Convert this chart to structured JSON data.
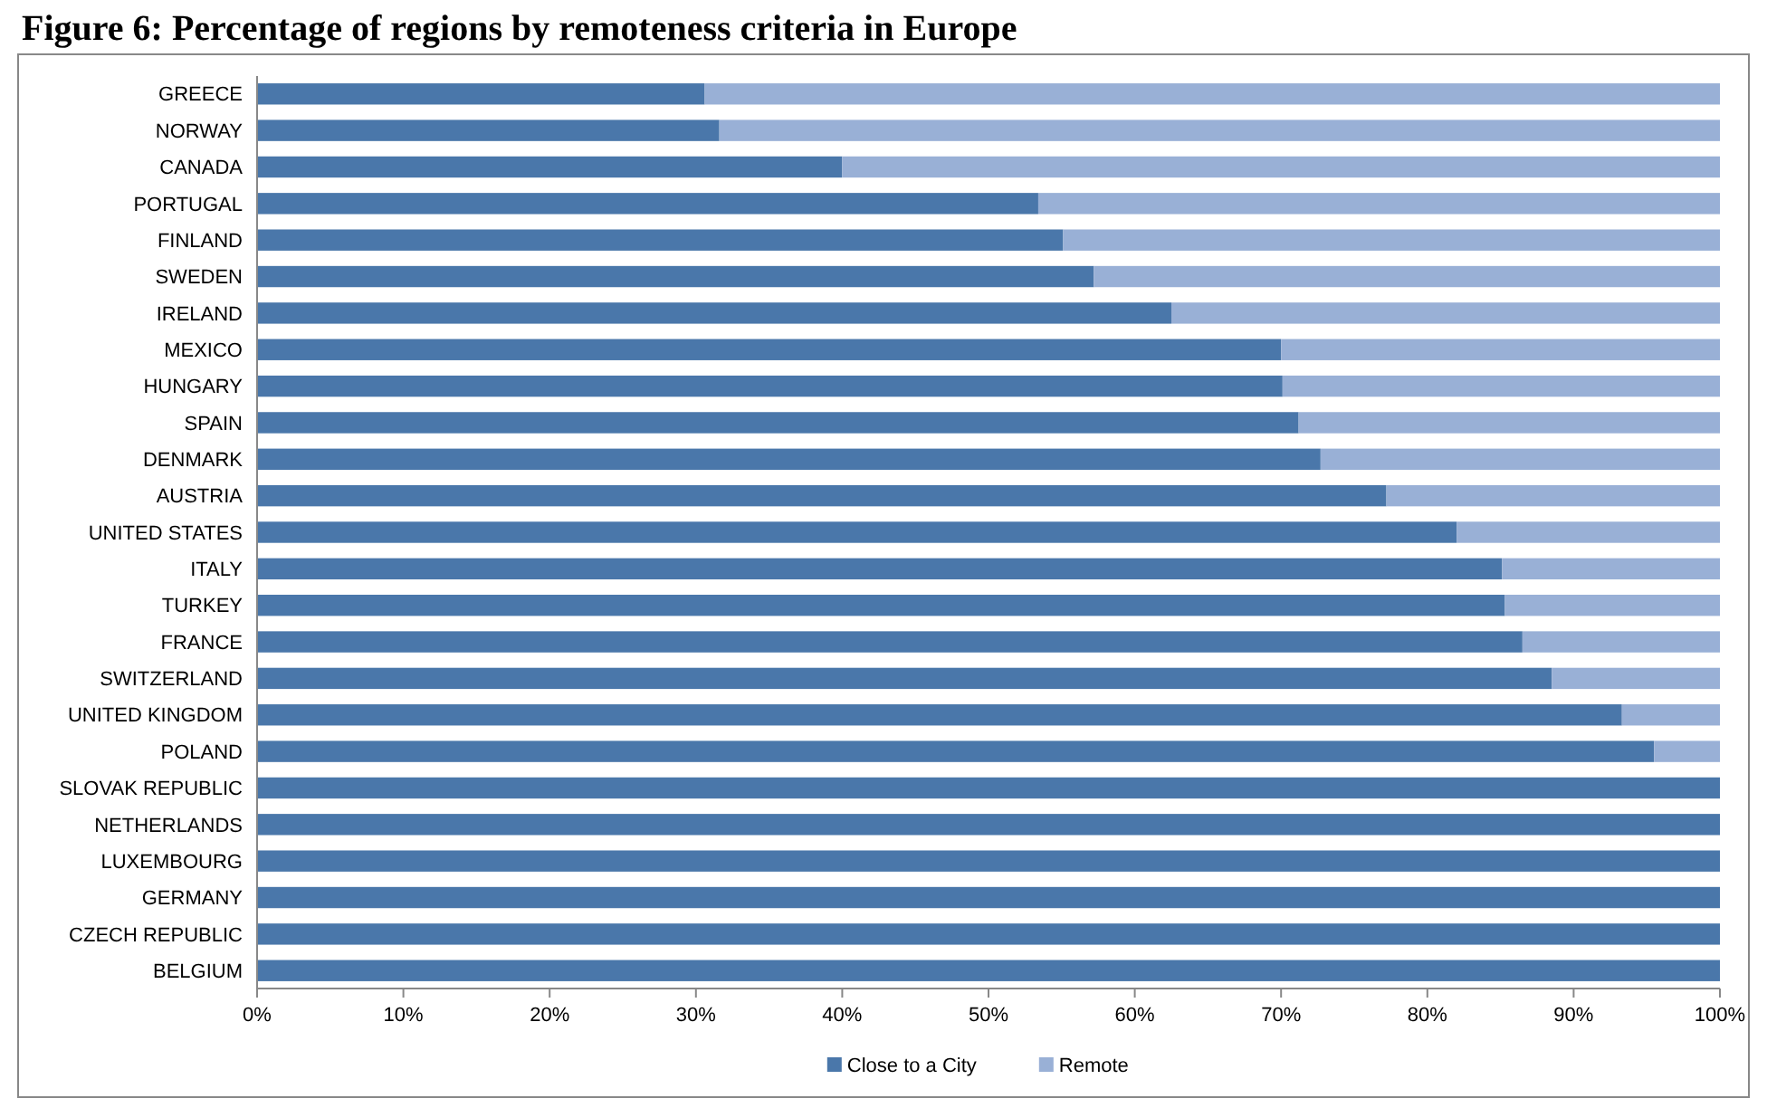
{
  "chart_data": {
    "type": "bar",
    "orientation": "horizontal",
    "stacked": true,
    "title": "Figure 6: Percentage of regions by remoteness criteria in Europe",
    "categories": [
      "GREECE",
      "NORWAY",
      "CANADA",
      "PORTUGAL",
      "FINLAND",
      "SWEDEN",
      "IRELAND",
      "MEXICO",
      "HUNGARY",
      "SPAIN",
      "DENMARK",
      "AUSTRIA",
      "UNITED STATES",
      "ITALY",
      "TURKEY",
      "FRANCE",
      "SWITZERLAND",
      "UNITED KINGDOM",
      "POLAND",
      "SLOVAK REPUBLIC",
      "NETHERLANDS",
      "LUXEMBOURG",
      "GERMANY",
      "CZECH REPUBLIC",
      "BELGIUM"
    ],
    "series": [
      {
        "name": "Close to a City",
        "color": "#4a77aa",
        "values": [
          30.6,
          31.6,
          40,
          53.4,
          55.1,
          57.2,
          62.5,
          70,
          70.1,
          71.2,
          72.7,
          77.2,
          82,
          85.1,
          85.3,
          86.5,
          88.5,
          93.3,
          95.5,
          100,
          100,
          100,
          100,
          100,
          100
        ]
      },
      {
        "name": "Remote",
        "color": "#99b0d6",
        "values": [
          69.4,
          68.4,
          60,
          46.6,
          44.9,
          42.8,
          37.5,
          30,
          29.9,
          28.8,
          27.3,
          22.8,
          18,
          14.9,
          14.7,
          13.5,
          11.5,
          6.7,
          4.5,
          0,
          0,
          0,
          0,
          0,
          0
        ]
      }
    ],
    "xlim": [
      0,
      100
    ],
    "xticks": [
      {
        "value": 0,
        "label": "0%"
      },
      {
        "value": 10,
        "label": "10%"
      },
      {
        "value": 20,
        "label": "20%"
      },
      {
        "value": 30,
        "label": "30%"
      },
      {
        "value": 40,
        "label": "40%"
      },
      {
        "value": 50,
        "label": "50%"
      },
      {
        "value": 60,
        "label": "60%"
      },
      {
        "value": 70,
        "label": "70%"
      },
      {
        "value": 80,
        "label": "80%"
      },
      {
        "value": 90,
        "label": "90%"
      },
      {
        "value": 100,
        "label": "100%"
      }
    ],
    "grid": false,
    "legend": "bottom"
  }
}
